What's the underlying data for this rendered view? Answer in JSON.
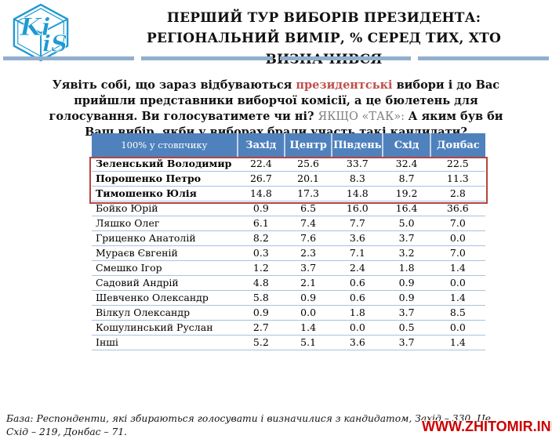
{
  "header": {
    "title_line1": "ПЕРШИЙ ТУР ВИБОРІВ ПРЕЗИДЕНТА:",
    "title_line2": "РЕГІОНАЛЬНИЙ ВИМІР, % СЕРЕД ТИХ, ХТО ВИЗНАЧИВСЯ",
    "logo": {
      "text_left": "Ki",
      "text_right": "iS"
    }
  },
  "question": {
    "part1": "Уявіть собі, що зараз відбуваються ",
    "highlight": "президентські",
    "part2": " вибори і до Вас прийшли представники виборчої комісії, а це бюлетень для голосування. Ви голосуватимете чи ні? ",
    "muted": "ЯКЩО «ТАК»: ",
    "part3": "А яким був би Ваш вибір, якби у виборах брали участь такі кандидати?"
  },
  "table": {
    "columns": [
      "100% у стовпчику",
      "Захід",
      "Центр",
      "Південь",
      "Схід",
      "Донбас"
    ],
    "highlighted_count": 3,
    "rows": [
      {
        "name": "Зеленський Володимир",
        "values": [
          "22.4",
          "25.6",
          "33.7",
          "32.4",
          "22.5"
        ]
      },
      {
        "name": "Порошенко Петро",
        "values": [
          "26.7",
          "20.1",
          "8.3",
          "8.7",
          "11.3"
        ]
      },
      {
        "name": "Тимошенко Юлія",
        "values": [
          "14.8",
          "17.3",
          "14.8",
          "19.2",
          "2.8"
        ]
      },
      {
        "name": "Бойко Юрій",
        "values": [
          "0.9",
          "6.5",
          "16.0",
          "16.4",
          "36.6"
        ]
      },
      {
        "name": "Ляшко Олег",
        "values": [
          "6.1",
          "7.4",
          "7.7",
          "5.0",
          "7.0"
        ]
      },
      {
        "name": "Гриценко Анатолій",
        "values": [
          "8.2",
          "7.6",
          "3.6",
          "3.7",
          "0.0"
        ]
      },
      {
        "name": "Мураєв Євгеній",
        "values": [
          "0.3",
          "2.3",
          "7.1",
          "3.2",
          "7.0"
        ]
      },
      {
        "name": "Смешко Ігор",
        "values": [
          "1.2",
          "3.7",
          "2.4",
          "1.8",
          "1.4"
        ]
      },
      {
        "name": "Садовий Андрій",
        "values": [
          "4.8",
          "2.1",
          "0.6",
          "0.9",
          "0.0"
        ]
      },
      {
        "name": "Шевченко Олександр",
        "values": [
          "5.8",
          "0.9",
          "0.6",
          "0.9",
          "1.4"
        ]
      },
      {
        "name": "Вілкул Олександр",
        "values": [
          "0.9",
          "0.0",
          "1.8",
          "3.7",
          "8.5"
        ]
      },
      {
        "name": "Кошулинський Руслан",
        "values": [
          "2.7",
          "1.4",
          "0.0",
          "0.5",
          "0.0"
        ]
      },
      {
        "name": "Інші",
        "values": [
          "5.2",
          "5.1",
          "3.6",
          "3.7",
          "1.4"
        ]
      }
    ]
  },
  "footer": {
    "base_line1": "База: Респонденти, які збираються голосувати і визначилися з кандидатом, Захід – 330, Це",
    "base_line2": "Схід – 219, Донбас – 71.",
    "watermark": "WWW.ZHITOMIR.INFO"
  },
  "colors": {
    "header_blue": "#4f81bd",
    "highlight_red": "#b6453f",
    "accent_red_text": "#c0504d",
    "muted_gray": "#7f7f7f",
    "row_line": "#a8c2e0",
    "divider": "#92aece",
    "watermark_red": "#cc0000",
    "logo_blue": "#1e9ad2"
  }
}
